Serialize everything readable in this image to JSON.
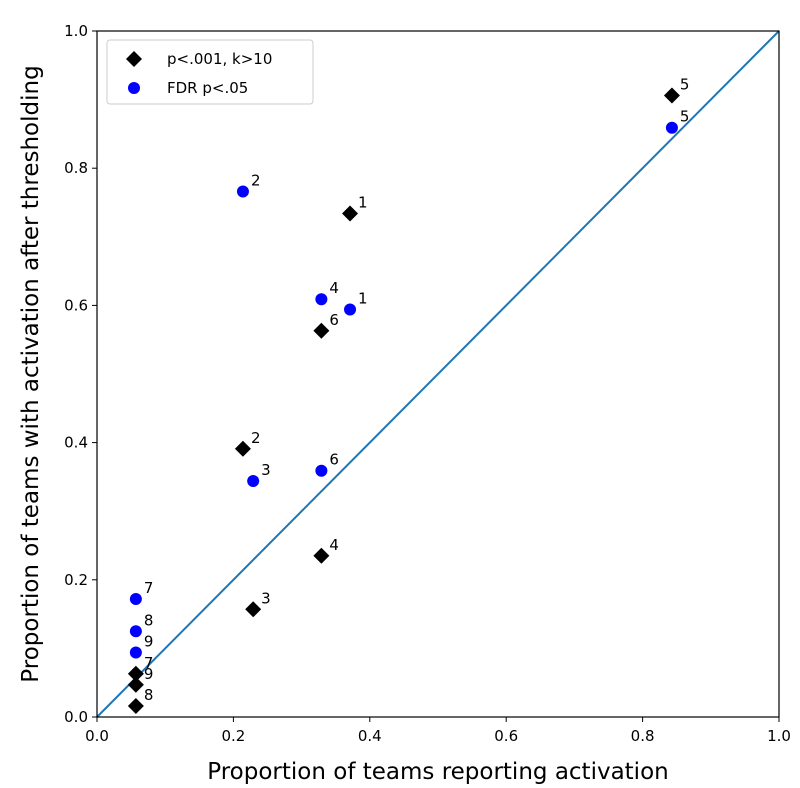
{
  "chart_data": {
    "type": "scatter",
    "title": "",
    "xlabel": "Proportion of teams reporting activation",
    "ylabel": "Proportion of teams with activation after thresholding",
    "xlim": [
      0.0,
      1.0
    ],
    "ylim": [
      0.0,
      1.0
    ],
    "xticks": [
      "0.0",
      "0.2",
      "0.4",
      "0.6",
      "0.8",
      "1.0"
    ],
    "yticks": [
      "0.0",
      "0.2",
      "0.4",
      "0.6",
      "0.8",
      "1.0"
    ],
    "grid": false,
    "legend": {
      "placement": "top-left"
    },
    "reference_line": {
      "type": "identity",
      "color": "#1f77b4"
    },
    "series": [
      {
        "name": "p<.001, k>10",
        "marker": "diamond",
        "color": "#000000",
        "points": [
          {
            "label": "1",
            "x": 0.371,
            "y": 0.734
          },
          {
            "label": "2",
            "x": 0.214,
            "y": 0.391
          },
          {
            "label": "3",
            "x": 0.229,
            "y": 0.157
          },
          {
            "label": "4",
            "x": 0.329,
            "y": 0.235
          },
          {
            "label": "5",
            "x": 0.843,
            "y": 0.906
          },
          {
            "label": "6",
            "x": 0.329,
            "y": 0.563
          },
          {
            "label": "7",
            "x": 0.057,
            "y": 0.063
          },
          {
            "label": "8",
            "x": 0.057,
            "y": 0.016
          },
          {
            "label": "9",
            "x": 0.057,
            "y": 0.047
          }
        ]
      },
      {
        "name": "FDR p<.05",
        "marker": "circle",
        "color": "#0000ff",
        "points": [
          {
            "label": "1",
            "x": 0.371,
            "y": 0.594
          },
          {
            "label": "2",
            "x": 0.214,
            "y": 0.766
          },
          {
            "label": "3",
            "x": 0.229,
            "y": 0.344
          },
          {
            "label": "4",
            "x": 0.329,
            "y": 0.609
          },
          {
            "label": "5",
            "x": 0.843,
            "y": 0.859
          },
          {
            "label": "6",
            "x": 0.329,
            "y": 0.359
          },
          {
            "label": "7",
            "x": 0.057,
            "y": 0.172
          },
          {
            "label": "8",
            "x": 0.057,
            "y": 0.125
          },
          {
            "label": "9",
            "x": 0.057,
            "y": 0.094
          }
        ]
      }
    ]
  }
}
